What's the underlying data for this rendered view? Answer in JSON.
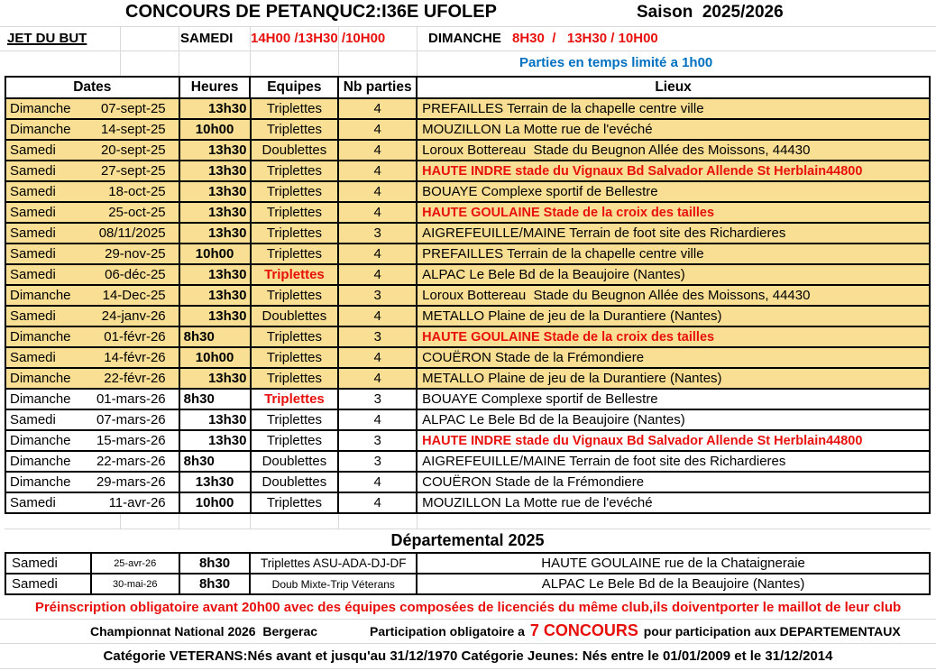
{
  "colors": {
    "row_yellow": "#f8df93",
    "red": "#e8100c",
    "blue": "#0070c0"
  },
  "header": {
    "title": "CONCOURS DE PETANQUC2:I36E UFOLEP",
    "season": "Saison  2025/2026",
    "jet_du_but": "JET DU BUT",
    "samedi_label": "SAMEDI",
    "samedi_times": "14H00 /13H30 /10H00",
    "dimanche_label": "DIMANCHE",
    "dimanche_times": "8H30  /   13H30 / 10H00",
    "time_limit_note": "Parties en temps limité a 1h00"
  },
  "schedule": {
    "columns": [
      "Dates",
      "Heures",
      "Equipes",
      "Nb parties",
      "Lieux"
    ],
    "rows": [
      {
        "day": "Dimanche",
        "date": "07-sept-25",
        "time": "13h30",
        "time_align": "right",
        "team": "Triplettes",
        "team_red": false,
        "parties": "4",
        "lieu": "PREFAILLES Terrain de la chapelle centre ville",
        "lieu_red": false,
        "bg": "yellow"
      },
      {
        "day": "Dimanche",
        "date": "14-sept-25",
        "time": "10h00",
        "time_align": "center",
        "team": "Triplettes",
        "team_red": false,
        "parties": "4",
        "lieu": "MOUZILLON La Motte rue de l'evéché",
        "lieu_red": false,
        "bg": "yellow"
      },
      {
        "day": "Samedi",
        "date": "20-sept-25",
        "time": "13h30",
        "time_align": "right",
        "team": "Doublettes",
        "team_red": false,
        "parties": "4",
        "lieu": "Loroux Bottereau  Stade du Beugnon Allée des Moissons, 44430",
        "lieu_red": false,
        "bg": "yellow"
      },
      {
        "day": "Samedi",
        "date": "27-sept-25",
        "time": "13h30",
        "time_align": "right",
        "team": "Triplettes",
        "team_red": false,
        "parties": "4",
        "lieu": "HAUTE INDRE stade du Vignaux Bd Salvador Allende St Herblain44800",
        "lieu_red": true,
        "bg": "yellow"
      },
      {
        "day": "Samedi",
        "date": "18-oct-25",
        "time": "13h30",
        "time_align": "right",
        "team": "Triplettes",
        "team_red": false,
        "parties": "4",
        "lieu": "BOUAYE Complexe sportif de Bellestre",
        "lieu_red": false,
        "bg": "yellow"
      },
      {
        "day": "Samedi",
        "date": "25-oct-25",
        "time": "13h30",
        "time_align": "right",
        "team": "Triplettes",
        "team_red": false,
        "parties": "4",
        "lieu": "HAUTE GOULAINE Stade de la croix des tailles",
        "lieu_red": true,
        "bg": "yellow"
      },
      {
        "day": "Samedi",
        "date": "08/11/2025",
        "time": "13h30",
        "time_align": "right",
        "team": "Triplettes",
        "team_red": false,
        "parties": "3",
        "lieu": "AIGREFEUILLE/MAINE Terrain de foot site des Richardieres",
        "lieu_red": false,
        "bg": "yellow"
      },
      {
        "day": "Samedi",
        "date": "29-nov-25",
        "time": "10h00",
        "time_align": "center",
        "team": "Triplettes",
        "team_red": false,
        "parties": "4",
        "lieu": "PREFAILLES Terrain de la chapelle centre ville",
        "lieu_red": false,
        "bg": "yellow"
      },
      {
        "day": "Samedi",
        "date": "06-déc-25",
        "time": "13h30",
        "time_align": "right",
        "team": "Triplettes",
        "team_red": true,
        "parties": "4",
        "lieu": "ALPAC Le Bele Bd de la Beaujoire (Nantes)",
        "lieu_red": false,
        "bg": "yellow"
      },
      {
        "day": "Dimanche",
        "date": "14-Dec-25",
        "time": "13h30",
        "time_align": "right",
        "team": "Triplettes",
        "team_red": false,
        "parties": "3",
        "lieu": "Loroux Bottereau  Stade du Beugnon Allée des Moissons, 44430",
        "lieu_red": false,
        "bg": "yellow"
      },
      {
        "day": "Samedi",
        "date": "24-janv-26",
        "time": "13h30",
        "time_align": "right",
        "team": "Doublettes",
        "team_red": false,
        "parties": "4",
        "lieu": "METALLO Plaine de jeu de la Durantiere (Nantes)",
        "lieu_red": false,
        "bg": "yellow"
      },
      {
        "day": "Dimanche",
        "date": "01-févr-26",
        "time": "8h30",
        "time_align": "left",
        "team": "Triplettes",
        "team_red": false,
        "parties": "3",
        "lieu": "HAUTE GOULAINE Stade de la croix des tailles",
        "lieu_red": true,
        "bg": "yellow"
      },
      {
        "day": "Samedi",
        "date": "14-févr-26",
        "time": "10h00",
        "time_align": "center",
        "team": "Triplettes",
        "team_red": false,
        "parties": "4",
        "lieu": "COUËRON Stade de la Frémondiere",
        "lieu_red": false,
        "bg": "yellow"
      },
      {
        "day": "Dimanche",
        "date": "22-févr-26",
        "time": "13h30",
        "time_align": "right",
        "team": "Triplettes",
        "team_red": false,
        "parties": "4",
        "lieu": "METALLO Plaine de jeu de la Durantiere (Nantes)",
        "lieu_red": false,
        "bg": "yellow"
      },
      {
        "day": "Dimanche",
        "date": "01-mars-26",
        "time": "8h30",
        "time_align": "left",
        "team": "Triplettes",
        "team_red": true,
        "parties": "3",
        "lieu": "BOUAYE Complexe sportif de Bellestre",
        "lieu_red": false,
        "bg": "white"
      },
      {
        "day": "Samedi",
        "date": "07-mars-26",
        "time": "13h30",
        "time_align": "right",
        "team": "Triplettes",
        "team_red": false,
        "parties": "4",
        "lieu": "ALPAC Le Bele Bd de la Beaujoire (Nantes)",
        "lieu_red": false,
        "bg": "white"
      },
      {
        "day": "Dimanche",
        "date": "15-mars-26",
        "time": "13h30",
        "time_align": "right",
        "team": "Triplettes",
        "team_red": false,
        "parties": "3",
        "lieu": "HAUTE INDRE stade du Vignaux Bd Salvador Allende St Herblain44800",
        "lieu_red": true,
        "bg": "white"
      },
      {
        "day": "Dimanche",
        "date": "22-mars-26",
        "time": "8h30",
        "time_align": "left",
        "team": "Doublettes",
        "team_red": false,
        "parties": "3",
        "lieu": "AIGREFEUILLE/MAINE Terrain de foot site des Richardieres",
        "lieu_red": false,
        "bg": "white"
      },
      {
        "day": "Dimanche",
        "date": "29-mars-26",
        "time": "13h30",
        "time_align": "center",
        "team": "Doublettes",
        "team_red": false,
        "parties": "4",
        "lieu": "COUËRON Stade de la Frémondiere",
        "lieu_red": false,
        "bg": "white"
      },
      {
        "day": "Samedi",
        "date": "11-avr-26",
        "time": "10h00",
        "time_align": "center",
        "team": "Triplettes",
        "team_red": false,
        "parties": "4",
        "lieu": "MOUZILLON La Motte rue de l'evéché",
        "lieu_red": false,
        "bg": "white"
      }
    ]
  },
  "departemental": {
    "title": "Départemental 2025",
    "rows": [
      {
        "day": "Samedi",
        "date": "25-avr-26",
        "time": "8h30",
        "team": "Triplettes ASU-ADA-DJ-DF",
        "lieu": "HAUTE GOULAINE rue de la Chataigneraie"
      },
      {
        "day": "Samedi",
        "date": "30-mai-26",
        "time": "8h30",
        "team": "Doub Mixte-Trip Véterans",
        "lieu": "ALPAC Le Bele Bd de la Beaujoire (Nantes)"
      }
    ]
  },
  "footer": {
    "line1": "Préinscription obligatoire avant 20h00 avec des équipes composées de licenciés du même club,ils doiventporter le maillot de leur club",
    "line2_left": "Championnat National 2026  Bergerac",
    "line2_mid": "Participation obligatoire a ",
    "line2_highlight": "7 CONCOURS",
    "line2_right": " pour participation aux DEPARTEMENTAUX",
    "line3": "Catégorie VETERANS:Nés avant et jusqu'au 31/12/1970  Catégorie Jeunes:  Nés entre le 01/01/2009 et le 31/12/2014"
  }
}
